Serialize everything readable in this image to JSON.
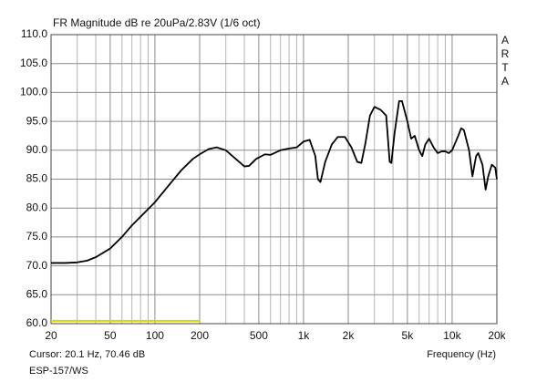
{
  "chart_data": {
    "type": "line",
    "title": "FR Magnitude dB re 20uPa/2.83V (1/6 oct)",
    "watermark": [
      "A",
      "R",
      "T",
      "A"
    ],
    "cursor_text": "Cursor: 20.1 Hz, 70.46 dB",
    "footer_text": "ESP-157/WS",
    "x_label": "Frequency (Hz)",
    "x_log": true,
    "grid": true,
    "xlim": [
      20,
      20000
    ],
    "ylim": [
      60,
      110
    ],
    "xticks": [
      20,
      50,
      100,
      200,
      500,
      {
        "value": 1000,
        "label": "1k"
      },
      {
        "value": 2000,
        "label": "2k"
      },
      {
        "value": 5000,
        "label": "5k"
      },
      {
        "value": 10000,
        "label": "10k"
      },
      {
        "value": 20000,
        "label": "20k"
      }
    ],
    "xminor": [
      30,
      40,
      60,
      70,
      80,
      90,
      300,
      400,
      600,
      700,
      800,
      900,
      3000,
      4000,
      6000,
      7000,
      8000,
      9000
    ],
    "yticks": [
      {
        "value": 60,
        "label": "60.0"
      },
      {
        "value": 65,
        "label": "65.0"
      },
      {
        "value": 70,
        "label": "70.0"
      },
      {
        "value": 75,
        "label": "75.0"
      },
      {
        "value": 80,
        "label": "80.0"
      },
      {
        "value": 85,
        "label": "85.0"
      },
      {
        "value": 90,
        "label": "90.0"
      },
      {
        "value": 95,
        "label": "95.0"
      },
      {
        "value": 100,
        "label": "100.0"
      },
      {
        "value": 105,
        "label": "105.0"
      },
      {
        "value": 110,
        "label": "110.0"
      }
    ],
    "series": [
      {
        "color": "#000000",
        "x": [
          20,
          25,
          30,
          35,
          40,
          50,
          60,
          70,
          80,
          100,
          120,
          150,
          180,
          200,
          230,
          260,
          300,
          350,
          400,
          430,
          480,
          550,
          600,
          700,
          800,
          900,
          1000,
          1100,
          1200,
          1250,
          1300,
          1400,
          1550,
          1700,
          1900,
          2100,
          2300,
          2450,
          2600,
          2800,
          3000,
          3300,
          3600,
          3800,
          3900,
          4100,
          4400,
          4600,
          5000,
          5300,
          5600,
          6000,
          6300,
          6600,
          7000,
          7500,
          8000,
          8500,
          9000,
          9500,
          10000,
          11000,
          11500,
          12000,
          13000,
          13700,
          14500,
          15000,
          16000,
          16800,
          17500,
          18500,
          19500,
          20000
        ],
        "values": [
          70.5,
          70.5,
          70.6,
          70.9,
          71.5,
          73,
          75,
          77,
          78.5,
          81,
          83.5,
          86.5,
          88.5,
          89.3,
          90.2,
          90.5,
          90,
          88.5,
          87.2,
          87.3,
          88.5,
          89.3,
          89.2,
          90,
          90.3,
          90.5,
          91.5,
          91.8,
          89,
          85,
          84.5,
          88,
          91,
          92.3,
          92.3,
          90.5,
          88,
          87.8,
          91,
          96,
          97.5,
          97,
          96,
          88,
          87.8,
          93,
          98.5,
          98.5,
          95,
          92,
          92.5,
          90,
          89,
          91,
          92,
          90.5,
          89.5,
          89.8,
          89.8,
          89.5,
          90,
          92.5,
          93.8,
          93.5,
          90,
          85.5,
          89,
          89.5,
          87.5,
          83.2,
          85.5,
          87.5,
          87,
          85
        ]
      },
      {
        "color": "#d8d800",
        "x": [
          20,
          200
        ],
        "values": [
          60.5,
          60.5
        ]
      }
    ]
  }
}
